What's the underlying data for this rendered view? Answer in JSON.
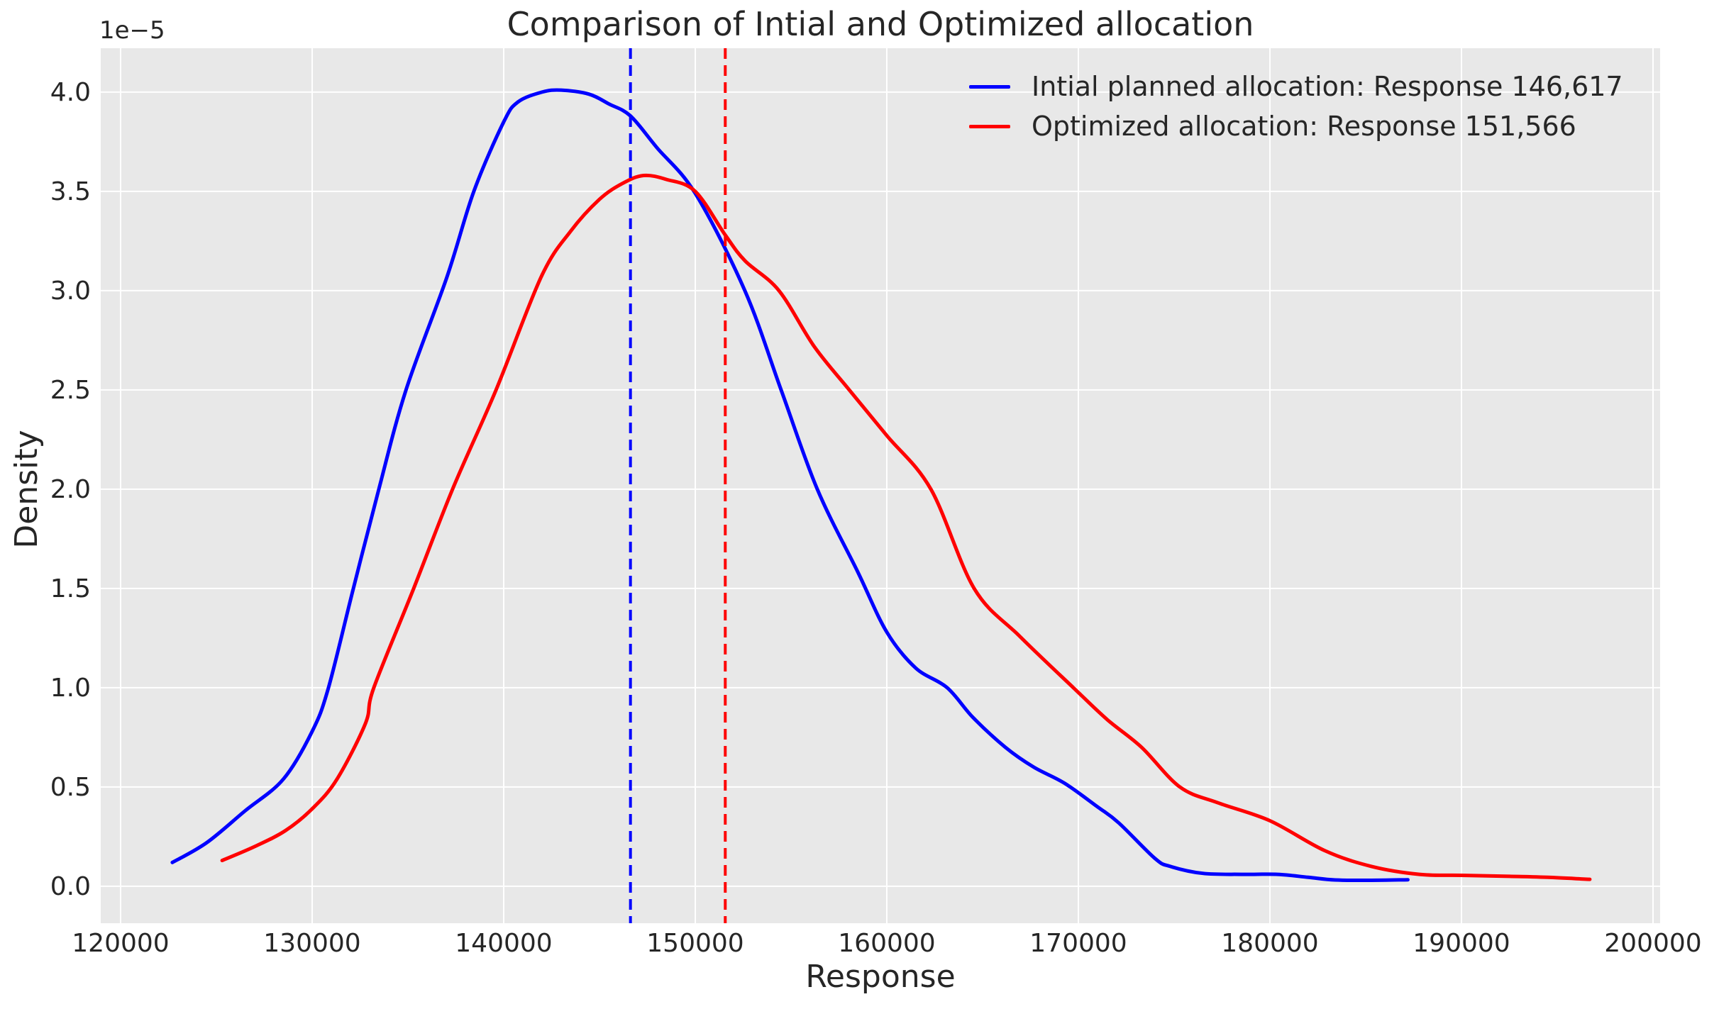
{
  "figure": {
    "background": "#ffffff",
    "axes_background": "#e8e8e8",
    "grid_color": "#ffffff",
    "text_color": "#262626"
  },
  "chart_data": {
    "type": "line",
    "title": "Comparison of Intial and Optimized allocation",
    "xlabel": "Response",
    "ylabel": "Density",
    "y_offset_label": "1e−5",
    "density_scale": "1e-5",
    "grid": true,
    "legend_position": "upper right",
    "xlim": [
      118963,
      200370
    ],
    "ylim_1e5": [
      -0.186,
      4.221
    ],
    "x_ticks": [
      120000,
      130000,
      140000,
      150000,
      160000,
      170000,
      180000,
      190000,
      200000
    ],
    "y_ticks_1e5": [
      "0.0",
      "0.5",
      "1.0",
      "1.5",
      "2.0",
      "2.5",
      "3.0",
      "3.5",
      "4.0"
    ],
    "series": [
      {
        "name": "Intial planned allocation: Response 146,617",
        "color": "#0000ff",
        "mean_response": 146617,
        "mean_line_style": "dashed",
        "points_x": [
          122700,
          124500,
          126500,
          128500,
          130000,
          130850,
          132150,
          133480,
          134900,
          137040,
          138440,
          140000,
          140740,
          142000,
          143000,
          144440,
          145500,
          146617,
          148000,
          150000,
          152590,
          154480,
          156370,
          158500,
          160000,
          161500,
          163150,
          164500,
          166190,
          167670,
          169260,
          171000,
          172100,
          174000,
          174800,
          176500,
          178500,
          180400,
          182000,
          183400,
          185300,
          187200
        ],
        "points_y_1e5": [
          0.12,
          0.22,
          0.38,
          0.54,
          0.78,
          1.0,
          1.5,
          2.0,
          2.5,
          3.07,
          3.5,
          3.85,
          3.95,
          4.0,
          4.01,
          3.99,
          3.94,
          3.88,
          3.72,
          3.49,
          3.0,
          2.5,
          2.0,
          1.58,
          1.28,
          1.1,
          1.0,
          0.85,
          0.7,
          0.6,
          0.52,
          0.4,
          0.32,
          0.14,
          0.1,
          0.065,
          0.06,
          0.06,
          0.045,
          0.032,
          0.03,
          0.033
        ]
      },
      {
        "name": "Optimized allocation: Response 151,566",
        "color": "#ff0000",
        "mean_response": 151566,
        "mean_line_style": "dashed",
        "points_x": [
          125300,
          127000,
          128600,
          130000,
          131300,
          132780,
          133220,
          135300,
          137330,
          139600,
          141960,
          143500,
          145000,
          146200,
          147300,
          148500,
          150000,
          151566,
          152600,
          154370,
          156200,
          158040,
          160000,
          162300,
          164560,
          166930,
          169740,
          171500,
          173300,
          175300,
          177300,
          180000,
          182850,
          185300,
          187800,
          190000,
          192500,
          194500,
          196700
        ],
        "points_y_1e5": [
          0.13,
          0.2,
          0.28,
          0.39,
          0.54,
          0.82,
          1.0,
          1.5,
          2.0,
          2.5,
          3.07,
          3.3,
          3.46,
          3.54,
          3.58,
          3.56,
          3.5,
          3.28,
          3.15,
          3.0,
          2.72,
          2.5,
          2.27,
          2.0,
          1.5,
          1.26,
          1.0,
          0.84,
          0.7,
          0.5,
          0.42,
          0.33,
          0.18,
          0.1,
          0.06,
          0.055,
          0.05,
          0.045,
          0.035
        ]
      }
    ]
  },
  "legend": {
    "items": [
      {
        "label": "Intial planned allocation: Response 146,617",
        "color": "#0000ff"
      },
      {
        "label": "Optimized allocation: Response 151,566",
        "color": "#ff0000"
      }
    ]
  }
}
